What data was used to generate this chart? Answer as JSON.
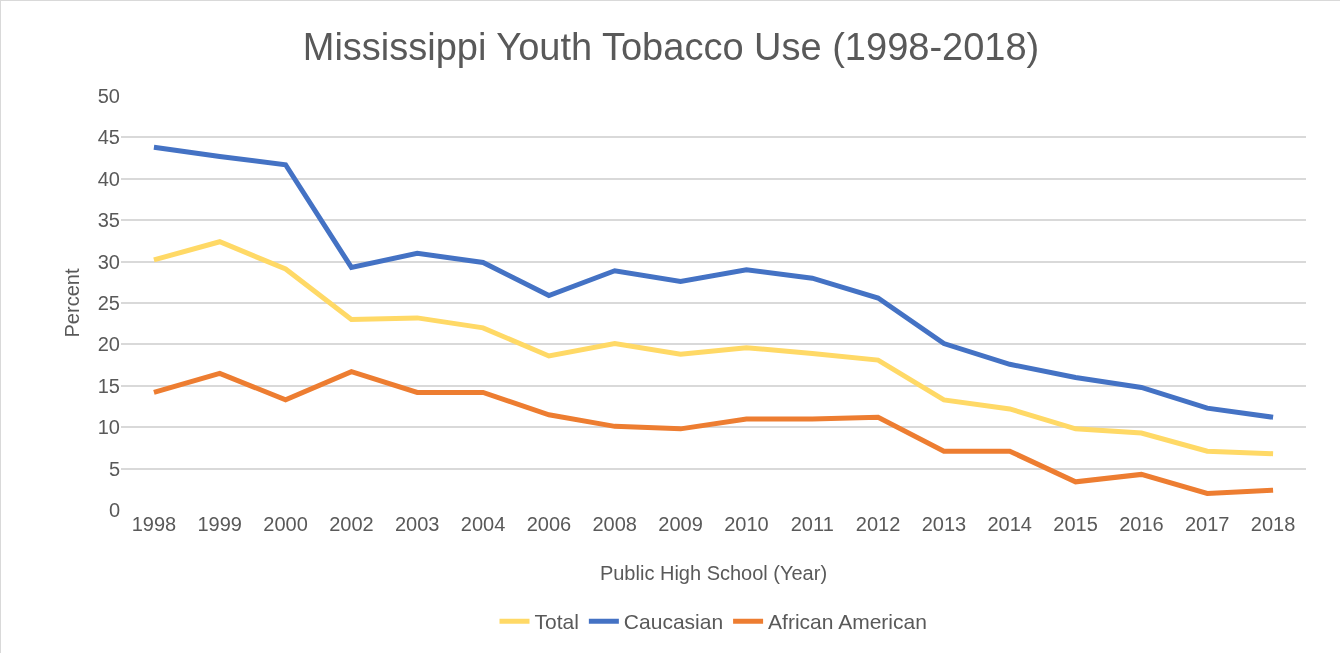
{
  "chart_data": {
    "type": "line",
    "title": "Mississippi Youth Tobacco Use (1998-2018)",
    "xlabel": "Public High School (Year)",
    "ylabel": "Percent",
    "categories": [
      "1998",
      "1999",
      "2000",
      "2002",
      "2003",
      "2004",
      "2006",
      "2008",
      "2009",
      "2010",
      "2011",
      "2012",
      "2013",
      "2014",
      "2015",
      "2016",
      "2017",
      "2018"
    ],
    "series": [
      {
        "name": "Total",
        "color": "#ffd966",
        "values": [
          30.2,
          32.4,
          29.1,
          23.0,
          23.2,
          22.0,
          18.6,
          20.1,
          18.8,
          19.6,
          18.9,
          18.1,
          13.3,
          12.2,
          9.8,
          9.3,
          7.1,
          6.8
        ]
      },
      {
        "name": "Caucasian",
        "color": "#4472c4",
        "values": [
          43.8,
          42.7,
          41.7,
          29.3,
          31.0,
          29.9,
          25.9,
          28.9,
          27.6,
          29.0,
          28.0,
          25.6,
          20.1,
          17.6,
          16.0,
          14.8,
          12.3,
          11.2
        ]
      },
      {
        "name": "African American",
        "color": "#ed7d31",
        "values": [
          14.2,
          16.5,
          13.3,
          16.7,
          14.2,
          14.2,
          11.5,
          10.1,
          9.8,
          11.0,
          11.0,
          11.2,
          7.1,
          7.1,
          3.4,
          4.3,
          2.0,
          2.4
        ]
      }
    ],
    "ylim": [
      0,
      50
    ],
    "yticks": [
      0,
      5,
      10,
      15,
      20,
      25,
      30,
      35,
      40,
      45,
      50
    ],
    "grid": "y",
    "legend": "bottom",
    "marker": "none",
    "line_style": "solid"
  }
}
